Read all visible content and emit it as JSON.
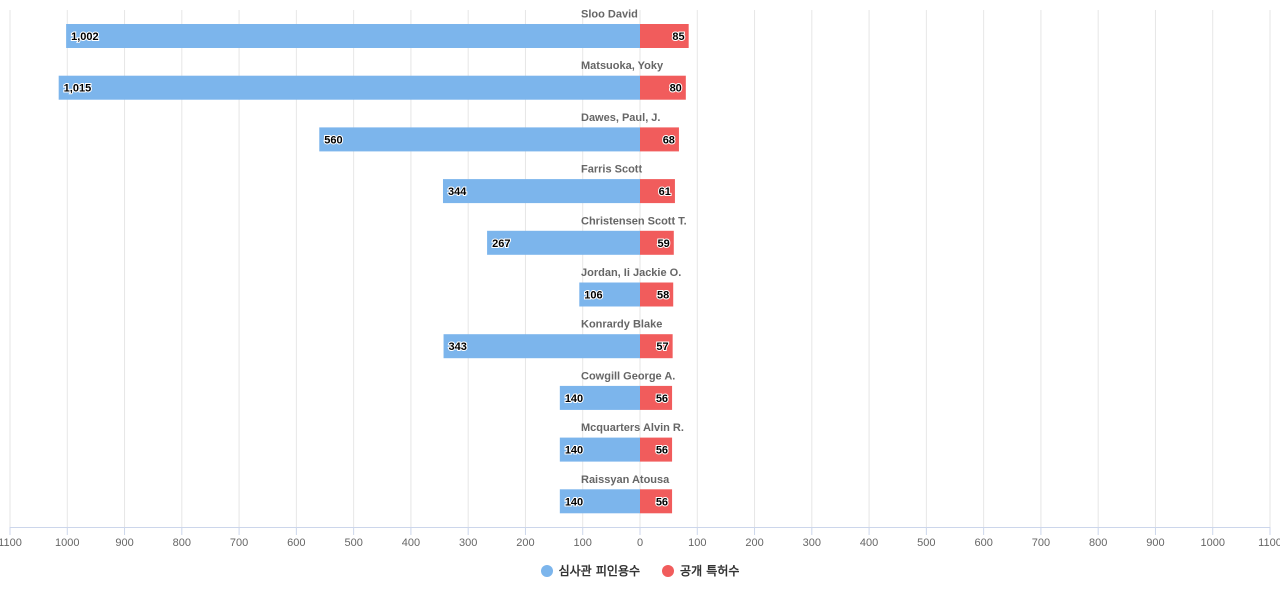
{
  "chart_data": {
    "type": "bar",
    "orientation": "horizontal-diverging",
    "categories": [
      "Sloo David",
      "Matsuoka, Yoky",
      "Dawes, Paul, J.",
      "Farris Scott",
      "Christensen Scott T.",
      "Jordan, Ii Jackie O.",
      "Konrardy Blake",
      "Cowgill George A.",
      "Mcquarters Alvin R.",
      "Raissyan Atousa"
    ],
    "series": [
      {
        "name": "심사관 피인용수",
        "color": "#7cb5ec",
        "side": "left",
        "values": [
          1002,
          1015,
          560,
          344,
          267,
          106,
          343,
          140,
          140,
          140
        ]
      },
      {
        "name": "공개 특허수",
        "color": "#f15c5c",
        "side": "right",
        "values": [
          85,
          80,
          68,
          61,
          59,
          58,
          57,
          56,
          56,
          56
        ]
      }
    ],
    "value_labels_left": [
      "1,002",
      "1,015",
      "560",
      "344",
      "267",
      "106",
      "343",
      "140",
      "140",
      "140"
    ],
    "value_labels_right": [
      "85",
      "80",
      "68",
      "61",
      "59",
      "58",
      "57",
      "56",
      "56",
      "56"
    ],
    "x_ticks": [
      1100,
      1000,
      900,
      800,
      700,
      600,
      500,
      400,
      300,
      200,
      100,
      0,
      100,
      200,
      300,
      400,
      500,
      600,
      700,
      800,
      900,
      1000,
      1100
    ],
    "xlim": [
      -1100,
      1100
    ],
    "grid": true,
    "legend_position": "bottom"
  }
}
